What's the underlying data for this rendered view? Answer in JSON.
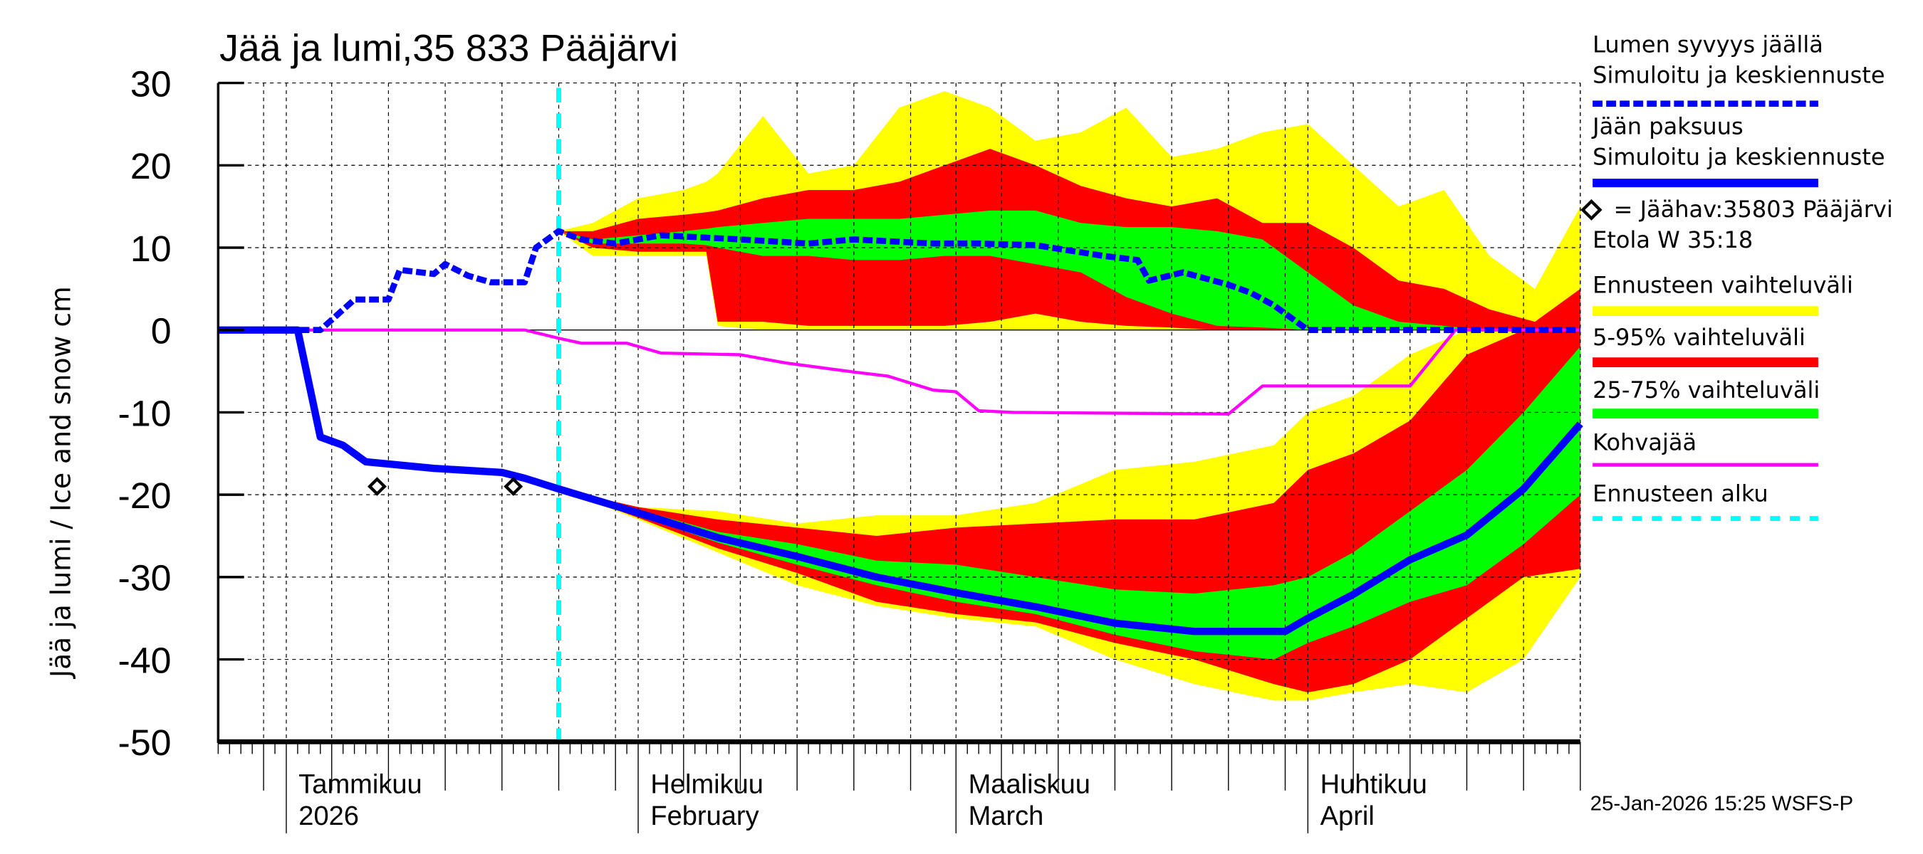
{
  "chart_data": {
    "type": "area",
    "title": "Jää ja lumi,35 833 Pääjärvi",
    "ylabel": "Jää ja lumi / Ice and snow    cm",
    "ylim": [
      -50,
      30
    ],
    "yticks": [
      "30",
      "20",
      "10",
      "0",
      "-10",
      "-20",
      "-30",
      "-40",
      "-50"
    ],
    "ytick_values": [
      30,
      20,
      10,
      0,
      -10,
      -20,
      -30,
      -40,
      -50
    ],
    "xlim": [
      "2025-12-26",
      "2026-04-25"
    ],
    "grid": true,
    "legend_placement": "right",
    "month_labels": [
      {
        "date": "2026-01-01",
        "line1": "Tammikuu",
        "line2": "2026"
      },
      {
        "date": "2026-02-01",
        "line1": "Helmikuu",
        "line2": "February"
      },
      {
        "date": "2026-03-01",
        "line1": "Maaliskuu",
        "line2": "March"
      },
      {
        "date": "2026-04-01",
        "line1": "Huhtikuu",
        "line2": "April"
      }
    ],
    "forecast_start": "2026-01-25",
    "colors": {
      "snow": "#0000ff",
      "ice": "#0000ff",
      "yellow": "#ffff00",
      "red": "#ff0000",
      "green": "#00ff00",
      "slush": "#ff00ff",
      "forecast_start": "#00ffff",
      "obs": "#000000"
    },
    "snow_depth": [
      [
        "2025-12-26",
        0
      ],
      [
        "2026-01-04",
        0
      ],
      [
        "2026-01-07",
        3.7
      ],
      [
        "2026-01-10",
        3.7
      ],
      [
        "2026-01-11",
        7.3
      ],
      [
        "2026-01-14",
        6.8
      ],
      [
        "2026-01-15",
        8
      ],
      [
        "2026-01-17",
        6.6
      ],
      [
        "2026-01-19",
        5.8
      ],
      [
        "2026-01-22",
        5.8
      ],
      [
        "2026-01-23",
        10
      ],
      [
        "2026-01-25",
        12
      ],
      [
        "2026-01-27",
        11
      ],
      [
        "2026-01-30",
        10.5
      ],
      [
        "2026-02-03",
        11.5
      ],
      [
        "2026-02-10",
        11
      ],
      [
        "2026-02-16",
        10.5
      ],
      [
        "2026-02-20",
        11
      ],
      [
        "2026-02-27",
        10.5
      ],
      [
        "2026-03-03",
        10.5
      ],
      [
        "2026-03-08",
        10.3
      ],
      [
        "2026-03-14",
        9
      ],
      [
        "2026-03-17",
        8.5
      ],
      [
        "2026-03-18",
        6
      ],
      [
        "2026-03-21",
        7
      ],
      [
        "2026-03-25",
        5.5
      ],
      [
        "2026-03-27",
        4.5
      ],
      [
        "2026-03-29",
        3
      ],
      [
        "2026-03-31",
        1
      ],
      [
        "2026-04-01",
        0
      ],
      [
        "2026-04-25",
        0
      ]
    ],
    "ice_thickness": [
      [
        "2025-12-26",
        0
      ],
      [
        "2026-01-02",
        0
      ],
      [
        "2026-01-04",
        -13
      ],
      [
        "2026-01-06",
        -14
      ],
      [
        "2026-01-08",
        -16
      ],
      [
        "2026-01-14",
        -16.8
      ],
      [
        "2026-01-20",
        -17.3
      ],
      [
        "2026-01-22",
        -18
      ],
      [
        "2026-01-25",
        -19.3
      ],
      [
        "2026-02-01",
        -22.2
      ],
      [
        "2026-02-08",
        -25.2
      ],
      [
        "2026-02-15",
        -27.5
      ],
      [
        "2026-02-22",
        -30
      ],
      [
        "2026-03-01",
        -31.9
      ],
      [
        "2026-03-08",
        -33.6
      ],
      [
        "2026-03-15",
        -35.6
      ],
      [
        "2026-03-22",
        -36.6
      ],
      [
        "2026-03-30",
        -36.6
      ],
      [
        "2026-04-01",
        -35
      ],
      [
        "2026-04-05",
        -32.1
      ],
      [
        "2026-04-10",
        -27.9
      ],
      [
        "2026-04-15",
        -24.9
      ],
      [
        "2026-04-20",
        -19.3
      ],
      [
        "2026-04-25",
        -11.4
      ]
    ],
    "slush_ice": [
      [
        "2025-12-26",
        0
      ],
      [
        "2026-01-22",
        0
      ],
      [
        "2026-01-25",
        -1
      ],
      [
        "2026-01-27",
        -1.6
      ],
      [
        "2026-01-31",
        -1.6
      ],
      [
        "2026-02-03",
        -2.8
      ],
      [
        "2026-02-10",
        -3
      ],
      [
        "2026-02-14",
        -4
      ],
      [
        "2026-02-20",
        -5.1
      ],
      [
        "2026-02-23",
        -5.6
      ],
      [
        "2026-02-27",
        -7.3
      ],
      [
        "2026-03-01",
        -7.5
      ],
      [
        "2026-03-03",
        -9.8
      ],
      [
        "2026-03-06",
        -10
      ],
      [
        "2026-03-25",
        -10.2
      ],
      [
        "2026-03-28",
        -6.8
      ],
      [
        "2026-04-10",
        -6.8
      ],
      [
        "2026-04-14",
        0
      ],
      [
        "2026-04-25",
        0
      ]
    ],
    "observations": [
      [
        "2026-01-09",
        -19
      ],
      [
        "2026-01-21",
        -19
      ]
    ],
    "snow_bands": [
      [
        "2026-01-25",
        12,
        12,
        12,
        12,
        12,
        12
      ],
      [
        "2026-01-28",
        9,
        13,
        10,
        12,
        10.5,
        11
      ],
      [
        "2026-02-01",
        9,
        16,
        9.5,
        13.5,
        10.5,
        11.5
      ],
      [
        "2026-02-05",
        9,
        17,
        9.5,
        14,
        10.5,
        12
      ],
      [
        "2026-02-07",
        9,
        18,
        9.5,
        14.3,
        10.3,
        12.3
      ],
      [
        "2026-02-08",
        0.5,
        19,
        1,
        14.5,
        10,
        12.5
      ],
      [
        "2026-02-12",
        0,
        26,
        1,
        16,
        9,
        13
      ],
      [
        "2026-02-16",
        0,
        19,
        0.5,
        17,
        9,
        13.5
      ],
      [
        "2026-02-20",
        0,
        20,
        0.5,
        17,
        8.5,
        13.5
      ],
      [
        "2026-02-24",
        0,
        27,
        0.5,
        18,
        8.5,
        13.5
      ],
      [
        "2026-02-28",
        0,
        29,
        0.5,
        20,
        9,
        14
      ],
      [
        "2026-03-04",
        0,
        27,
        1,
        22,
        9,
        14.5
      ],
      [
        "2026-03-08",
        0,
        23,
        2,
        20,
        8,
        14.5
      ],
      [
        "2026-03-12",
        0,
        24,
        1,
        17.5,
        7,
        13
      ],
      [
        "2026-03-16",
        0,
        27,
        0.5,
        16,
        4,
        12.5
      ],
      [
        "2026-03-20",
        0,
        21,
        0.3,
        15,
        2,
        12.5
      ],
      [
        "2026-03-24",
        0,
        22,
        0,
        16,
        0.5,
        12
      ],
      [
        "2026-03-28",
        0,
        24,
        0,
        13,
        0.3,
        11
      ],
      [
        "2026-04-01",
        0,
        25,
        0,
        13,
        0,
        7
      ],
      [
        "2026-04-05",
        0,
        20,
        0,
        10,
        0,
        3
      ],
      [
        "2026-04-09",
        0,
        15,
        0,
        6,
        0,
        1
      ],
      [
        "2026-04-13",
        0,
        17,
        0,
        5,
        0,
        0.5
      ],
      [
        "2026-04-17",
        0,
        9,
        0,
        2.5,
        0,
        0
      ],
      [
        "2026-04-21",
        0,
        5,
        0,
        1,
        0,
        0
      ],
      [
        "2026-04-25",
        0,
        15,
        0,
        5,
        0,
        0
      ]
    ],
    "ice_bands": [
      [
        "2026-01-25",
        -19.3,
        -19.3,
        -19.3,
        -19.3,
        -19.3,
        -19.3
      ],
      [
        "2026-02-01",
        -23,
        -21.5,
        -22.8,
        -21.5,
        -22.5,
        -21.8
      ],
      [
        "2026-02-08",
        -27,
        -22,
        -26.5,
        -23,
        -25.8,
        -24.5
      ],
      [
        "2026-02-15",
        -31,
        -23.5,
        -29.5,
        -24,
        -28.5,
        -26
      ],
      [
        "2026-02-22",
        -33.5,
        -22.5,
        -33,
        -25,
        -31,
        -28
      ],
      [
        "2026-03-01",
        -35,
        -22.5,
        -34.5,
        -24,
        -33,
        -28.5
      ],
      [
        "2026-03-08",
        -36,
        -21,
        -35.5,
        -23.5,
        -34.5,
        -30
      ],
      [
        "2026-03-15",
        -40,
        -17,
        -38,
        -23,
        -37,
        -31.5
      ],
      [
        "2026-03-22",
        -43,
        -16,
        -40,
        -23,
        -39,
        -32
      ],
      [
        "2026-03-29",
        -45,
        -14,
        -43,
        -21,
        -40,
        -31
      ],
      [
        "2026-04-01",
        -45,
        -10,
        -44,
        -17,
        -38,
        -30
      ],
      [
        "2026-04-05",
        -44,
        -8,
        -43,
        -15,
        -36,
        -27
      ],
      [
        "2026-04-10",
        -43,
        -3,
        -40,
        -11,
        -33,
        -22
      ],
      [
        "2026-04-15",
        -44,
        0,
        -35,
        -3,
        -31,
        -17
      ],
      [
        "2026-04-20",
        -40,
        0,
        -30,
        0,
        -26,
        -10
      ],
      [
        "2026-04-25",
        -30,
        0,
        -29,
        0,
        -20,
        -2
      ]
    ],
    "band_columns": [
      "date",
      "range_low",
      "range_high",
      "p5",
      "p95",
      "p25",
      "p75"
    ],
    "legend": [
      {
        "line1": "Lumen syvyys jäällä",
        "line2": "Simuloitu ja keskiennuste",
        "style": "snow"
      },
      {
        "line1": "Jään paksuus",
        "line2": "Simuloitu ja keskiennuste",
        "style": "ice"
      },
      {
        "line1": "= Jäähav:35803 Pääjärvi",
        "line2": "Etola W 35:18",
        "style": "obs"
      },
      {
        "line1": "Ennusteen vaihteluväli",
        "style": "yellow"
      },
      {
        "line1": "5-95% vaihteluväli",
        "style": "red"
      },
      {
        "line1": "25-75% vaihteluväli",
        "style": "green"
      },
      {
        "line1": "Kohvajää",
        "style": "slush"
      },
      {
        "line1": "Ennusteen alku",
        "style": "forecast_start"
      }
    ],
    "footer": "25-Jan-2026 15:25 WSFS-P"
  }
}
